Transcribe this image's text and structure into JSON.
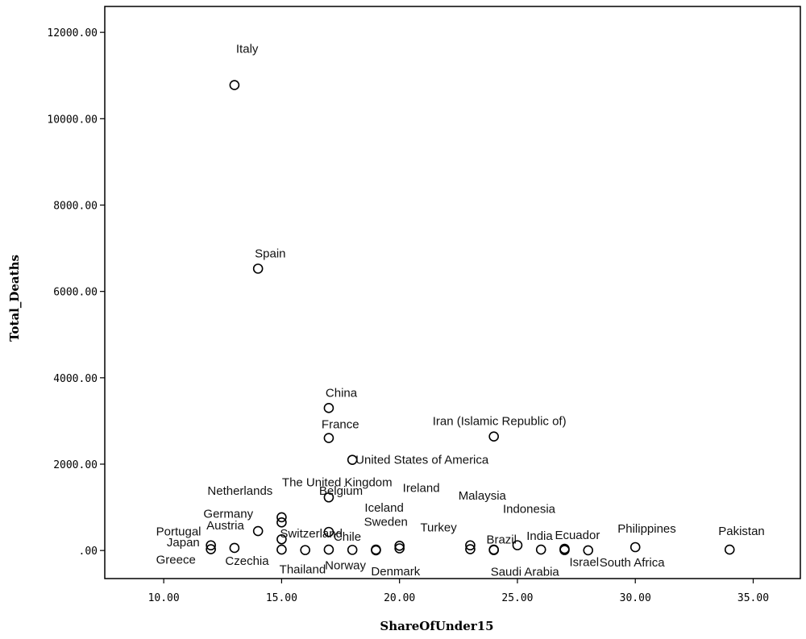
{
  "chart_data": {
    "type": "scatter",
    "xlabel": "ShareOfUnder15",
    "ylabel": "Total_Deaths",
    "xlim": [
      7.5,
      37
    ],
    "ylim": [
      -650,
      12600
    ],
    "xticks": [
      10,
      15,
      20,
      25,
      30,
      35
    ],
    "xtick_labels": [
      "10.00",
      "15.00",
      "20.00",
      "25.00",
      "30.00",
      "35.00"
    ],
    "yticks": [
      0,
      2000,
      4000,
      6000,
      8000,
      10000,
      12000
    ],
    "ytick_labels": [
      ".00",
      "2000.00",
      "4000.00",
      "6000.00",
      "8000.00",
      "10000.00",
      "12000.00"
    ],
    "grid": false,
    "points": [
      {
        "label": "Italy",
        "x": 13,
        "y": 10779
      },
      {
        "label": "Spain",
        "x": 14,
        "y": 6528
      },
      {
        "label": "China",
        "x": 17,
        "y": 3300
      },
      {
        "label": "France",
        "x": 17,
        "y": 2606
      },
      {
        "label": "Iran (Islamic Republic of)",
        "x": 24,
        "y": 2640
      },
      {
        "label": "United States of America",
        "x": 18,
        "y": 2100
      },
      {
        "label": "The United Kingdom",
        "x": 17,
        "y": 1230
      },
      {
        "label": "Netherlands",
        "x": 15,
        "y": 770
      },
      {
        "label": "Germany",
        "x": 15,
        "y": 650
      },
      {
        "label": "Belgium",
        "x": 17,
        "y": 430
      },
      {
        "label": "Switzerland",
        "x": 15,
        "y": 260
      },
      {
        "label": "Austria",
        "x": 14,
        "y": 450
      },
      {
        "label": "Portugal",
        "x": 12,
        "y": 120
      },
      {
        "label": "Japan",
        "x": 13,
        "y": 60
      },
      {
        "label": "Greece",
        "x": 12,
        "y": 30
      },
      {
        "label": "Czechia",
        "x": 15,
        "y": 20
      },
      {
        "label": "Thailand",
        "x": 16,
        "y": 10
      },
      {
        "label": "Chile",
        "x": 17,
        "y": 20
      },
      {
        "label": "Norway",
        "x": 18,
        "y": 15
      },
      {
        "label": "Denmark",
        "x": 19,
        "y": 20
      },
      {
        "label": "Iceland",
        "x": 19,
        "y": 5
      },
      {
        "label": "Sweden",
        "x": 20,
        "y": 110
      },
      {
        "label": "Ireland",
        "x": 20,
        "y": 50
      },
      {
        "label": "Brazil",
        "x": 23,
        "y": 120
      },
      {
        "label": "Turkey",
        "x": 23,
        "y": 30
      },
      {
        "label": "Malaysia",
        "x": 24,
        "y": 20
      },
      {
        "label": "Saudi Arabia",
        "x": 24,
        "y": 10
      },
      {
        "label": "Indonesia",
        "x": 25,
        "y": 122
      },
      {
        "label": "India",
        "x": 26,
        "y": 20
      },
      {
        "label": "Ecuador",
        "x": 27,
        "y": 40
      },
      {
        "label": "Israel",
        "x": 27,
        "y": 10
      },
      {
        "label": "South Africa",
        "x": 28,
        "y": 5
      },
      {
        "label": "Philippines",
        "x": 30,
        "y": 78
      },
      {
        "label": "Pakistan",
        "x": 34,
        "y": 20
      }
    ]
  },
  "labels_placement": [
    {
      "label": "Italy",
      "dx": 2,
      "dy": -40
    },
    {
      "label": "Spain",
      "dx": -4,
      "dy": -14
    },
    {
      "label": "China",
      "dx": -4,
      "dy": -14
    },
    {
      "label": "France",
      "dx": -9,
      "dy": -12
    },
    {
      "label": "Iran (Islamic Republic of)",
      "dx": -76,
      "dy": -14
    },
    {
      "label": "United States of America",
      "dx": 4,
      "dy": 5
    },
    {
      "label": "The United Kingdom",
      "dx": -58,
      "dy": -14
    },
    {
      "label": "Netherlands",
      "dx": -92,
      "dy": -28
    },
    {
      "label": "Germany",
      "dx": -97,
      "dy": -6
    },
    {
      "label": "Belgium",
      "dx": -12,
      "dy": -46
    },
    {
      "label": "Switzerland",
      "dx": -2,
      "dy": -2
    },
    {
      "label": "Austria",
      "dx": -64,
      "dy": -2
    },
    {
      "label": "Portugal",
      "dx": -68,
      "dy": -12
    },
    {
      "label": "Japan",
      "dx": -84,
      "dy": -2
    },
    {
      "label": "Greece",
      "dx": -68,
      "dy": 18
    },
    {
      "label": "Czechia",
      "dx": -70,
      "dy": 19
    },
    {
      "label": "Thailand",
      "dx": -32,
      "dy": 29
    },
    {
      "label": "Chile",
      "dx": 6,
      "dy": -11
    },
    {
      "label": "Norway",
      "dx": -34,
      "dy": 24
    },
    {
      "label": "Denmark",
      "dx": -6,
      "dy": 32
    },
    {
      "label": "Iceland",
      "dx": -14,
      "dy": -48
    },
    {
      "label": "Sweden",
      "dx": -44,
      "dy": -25
    },
    {
      "label": "Ireland",
      "dx": 4,
      "dy": -70
    },
    {
      "label": "Brazil",
      "dx": 20,
      "dy": -2
    },
    {
      "label": "Turkey",
      "dx": -62,
      "dy": -22
    },
    {
      "label": "Malaysia",
      "dx": -44,
      "dy": -62
    },
    {
      "label": "Saudi Arabia",
      "dx": -4,
      "dy": 32
    },
    {
      "label": "Indonesia",
      "dx": -18,
      "dy": -40
    },
    {
      "label": "India",
      "dx": -18,
      "dy": -12
    },
    {
      "label": "Ecuador",
      "dx": -12,
      "dy": -12
    },
    {
      "label": "Israel",
      "dx": 6,
      "dy": 20
    },
    {
      "label": "South Africa",
      "dx": 14,
      "dy": 20
    },
    {
      "label": "Philippines",
      "dx": -22,
      "dy": -18
    },
    {
      "label": "Pakistan",
      "dx": -14,
      "dy": -18
    }
  ]
}
